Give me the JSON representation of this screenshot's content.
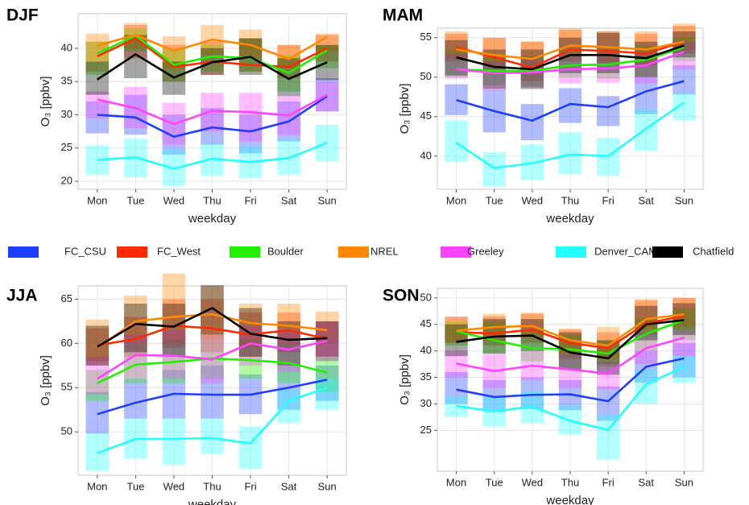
{
  "legend": {
    "series": [
      {
        "name": "FC_CSU",
        "color": "#1f3fff"
      },
      {
        "name": "FC_West",
        "color": "#ff2a00"
      },
      {
        "name": "Boulder",
        "color": "#22ee00"
      },
      {
        "name": "NREL",
        "color": "#ff8800"
      },
      {
        "name": "Greeley",
        "color": "#ff44ff"
      },
      {
        "name": "Denver_CAMP",
        "color": "#22ffff"
      },
      {
        "name": "Chatfield",
        "color": "#000000"
      }
    ]
  },
  "chart_data": [
    {
      "type": "line",
      "title": "DJF",
      "xlabel": "weekday",
      "ylabel": "O₃ [ppbv]",
      "categories": [
        "Mon",
        "Tue",
        "Wed",
        "Thu",
        "Fri",
        "Sat",
        "Sun"
      ],
      "ylim": [
        18.8,
        45.2
      ],
      "yticks": [
        20,
        25,
        30,
        35,
        40
      ],
      "grid": true,
      "series": [
        {
          "values": [
            30,
            29.6,
            26.7,
            28.1,
            27.5,
            29,
            32.8
          ],
          "lower": [
            27.2,
            27,
            24,
            25.5,
            24.2,
            26,
            30.5
          ],
          "upper": [
            32,
            33,
            30,
            31,
            30,
            32,
            35.5
          ]
        },
        {
          "values": [
            38.8,
            41.5,
            37.2,
            38,
            37.5,
            37.2,
            40
          ],
          "lower": [
            36.5,
            38.5,
            35,
            36,
            36.5,
            35.5,
            38
          ],
          "upper": [
            41,
            43.5,
            40.5,
            41,
            41.5,
            40.5,
            42
          ]
        },
        {
          "values": [
            39.2,
            41.9,
            37.5,
            38.8,
            38.5,
            36.3,
            39.7
          ],
          "lower": [
            36,
            39.5,
            35,
            36.5,
            36.5,
            33.5,
            37
          ],
          "upper": [
            41,
            43,
            40,
            40.5,
            41.5,
            39,
            40.5
          ]
        },
        {
          "values": [
            40.4,
            42,
            39.6,
            41.3,
            40.5,
            38.4,
            41.7
          ],
          "lower": [
            38,
            40,
            37,
            39,
            38.5,
            37,
            39.5
          ],
          "upper": [
            42.2,
            43.8,
            41.8,
            43.5,
            42.8,
            40.5,
            42.2
          ]
        },
        {
          "values": [
            32.3,
            31,
            28.6,
            30.6,
            30.4,
            29.9,
            33
          ],
          "lower": [
            29.5,
            28,
            25.5,
            27.5,
            26,
            27,
            30.5
          ],
          "upper": [
            33.5,
            34.2,
            31.8,
            33.3,
            33.3,
            32.8,
            35
          ]
        },
        {
          "values": [
            23.2,
            23.6,
            21.9,
            23.4,
            22.9,
            23.5,
            25.8
          ],
          "lower": [
            21,
            20.6,
            19.3,
            20.8,
            20.5,
            21,
            23
          ],
          "upper": [
            25.4,
            26.4,
            24.8,
            25.8,
            25.2,
            26.3,
            28.5
          ]
        },
        {
          "values": [
            35.3,
            39.1,
            35.6,
            37.9,
            38.7,
            35.4,
            37.9
          ],
          "lower": [
            33,
            35.5,
            33,
            36,
            36,
            32.8,
            35.2
          ],
          "upper": [
            38,
            42,
            38,
            40,
            41.5,
            38.5,
            40.5
          ]
        }
      ]
    },
    {
      "type": "line",
      "title": "MAM",
      "xlabel": "weekday",
      "ylabel": "O₃ [ppbv]",
      "categories": [
        "Mon",
        "Tue",
        "Wed",
        "Thu",
        "Fri",
        "Sat",
        "Sun"
      ],
      "ylim": [
        35.8,
        56.2
      ],
      "yticks": [
        40,
        45,
        50,
        55
      ],
      "grid": true,
      "series": [
        {
          "values": [
            47.1,
            45.7,
            44.5,
            46.6,
            46.2,
            48.2,
            49.5
          ],
          "lower": [
            45.2,
            43,
            42,
            44.2,
            43.8,
            45.3,
            47.8
          ],
          "upper": [
            49.1,
            48.4,
            46.6,
            48.6,
            47.6,
            50,
            51.5
          ]
        },
        {
          "values": [
            53.8,
            52.5,
            51.2,
            53.5,
            53.3,
            53,
            54.5
          ],
          "lower": [
            52,
            50.5,
            49.5,
            52,
            51.5,
            51.5,
            53
          ],
          "upper": [
            55.5,
            55,
            54.5,
            56,
            55.8,
            55.5,
            56.5
          ]
        },
        {
          "values": [
            51,
            50.8,
            50.8,
            51.5,
            51.6,
            52.2,
            53.8
          ],
          "lower": [
            50,
            49,
            48.8,
            50,
            49.8,
            50,
            52
          ],
          "upper": [
            53.5,
            52.5,
            52.7,
            53.5,
            53.5,
            54,
            55
          ]
        },
        {
          "values": [
            53.5,
            52.8,
            52.3,
            54,
            53.8,
            53.5,
            54.5
          ],
          "lower": [
            52.5,
            51.5,
            51,
            52.5,
            52,
            51.8,
            53.5
          ],
          "upper": [
            55.8,
            55,
            54.5,
            56.2,
            55.8,
            55.8,
            56.8
          ]
        },
        {
          "values": [
            51,
            50.5,
            50.6,
            51,
            51.1,
            51.5,
            53.2
          ],
          "lower": [
            49.8,
            48.3,
            48.7,
            49.2,
            49.3,
            49.2,
            51
          ],
          "upper": [
            53,
            52,
            52.2,
            53,
            53,
            53.2,
            54.5
          ]
        },
        {
          "values": [
            41.7,
            38.5,
            39.1,
            40.2,
            40,
            43.5,
            46.8
          ],
          "lower": [
            39.3,
            36.2,
            37,
            37.7,
            37.5,
            40.7,
            44.5
          ],
          "upper": [
            44.5,
            40.5,
            41.5,
            43,
            42.3,
            46,
            48
          ]
        },
        {
          "values": [
            52.5,
            51.3,
            51,
            52.8,
            52.8,
            52.4,
            54
          ],
          "lower": [
            50.2,
            48.5,
            48.5,
            50.5,
            50.5,
            50,
            52.5
          ],
          "upper": [
            54.7,
            53.5,
            53.5,
            55,
            55.6,
            54.5,
            55.8
          ]
        }
      ]
    },
    {
      "type": "line",
      "title": "JJA",
      "xlabel": "weekday",
      "ylabel": "O₃ [ppbv]",
      "categories": [
        "Mon",
        "Tue",
        "Wed",
        "Thu",
        "Fri",
        "Sat",
        "Sun"
      ],
      "ylim": [
        45.1,
        66.5
      ],
      "yticks": [
        50,
        55,
        60,
        65
      ],
      "grid": true,
      "series": [
        {
          "values": [
            52,
            53.3,
            54.3,
            54.2,
            54.2,
            55,
            55.9
          ],
          "lower": [
            49.8,
            51.5,
            51.5,
            51.5,
            52,
            52.5,
            53.5
          ],
          "upper": [
            54.5,
            56,
            57,
            57.5,
            56.5,
            57.5,
            57.5
          ]
        },
        {
          "values": [
            59.8,
            60.5,
            62,
            61.7,
            61,
            61.5,
            60.5
          ],
          "lower": [
            58,
            58.5,
            59.5,
            59,
            58.5,
            59,
            58.5
          ],
          "upper": [
            61.7,
            63,
            65,
            65,
            63.5,
            63.5,
            62.5
          ]
        },
        {
          "values": [
            55.5,
            57.6,
            57.9,
            58.3,
            58.1,
            57.8,
            56.7
          ],
          "lower": [
            53.5,
            55.5,
            55.5,
            56,
            56,
            55.5,
            54.5
          ],
          "upper": [
            57,
            60,
            60.5,
            61,
            60.5,
            60,
            58
          ]
        },
        {
          "values": [
            59.5,
            62.5,
            63,
            63.3,
            62.3,
            62,
            61.5
          ],
          "lower": [
            57.5,
            60,
            60,
            60.5,
            59.5,
            60,
            60
          ],
          "upper": [
            62.7,
            65.4,
            67.9,
            66.5,
            64.5,
            64.5,
            63.6
          ]
        },
        {
          "values": [
            56,
            58.7,
            58.6,
            58.2,
            60,
            59.3,
            60.3
          ],
          "lower": [
            54.2,
            56,
            56,
            55.5,
            57.5,
            56.8,
            58.5
          ],
          "upper": [
            58.5,
            61,
            61.5,
            61,
            62,
            61.5,
            62.5
          ]
        },
        {
          "values": [
            47.6,
            49.2,
            49.2,
            49.3,
            48.7,
            53.5,
            55
          ],
          "lower": [
            45.6,
            47,
            46.3,
            47.5,
            45.8,
            51,
            52.5
          ],
          "upper": [
            49.8,
            51.5,
            51.5,
            51.5,
            50.6,
            54.8,
            56
          ]
        },
        {
          "values": [
            59.6,
            62.2,
            61.9,
            64,
            61.1,
            60.4,
            60.6
          ],
          "lower": [
            57.5,
            59,
            58.5,
            61,
            58.5,
            57.5,
            58
          ],
          "upper": [
            62,
            64.5,
            64.5,
            66.6,
            64,
            62.5,
            62.5
          ]
        }
      ]
    },
    {
      "type": "line",
      "title": "SON",
      "xlabel": "weekday",
      "ylabel": "O₃ [ppbv]",
      "categories": [
        "Mon",
        "Tue",
        "Wed",
        "Thu",
        "Fri",
        "Sat",
        "Sun"
      ],
      "ylim": [
        17.3,
        51.8
      ],
      "yticks": [
        25,
        30,
        35,
        40,
        45,
        50
      ],
      "grid": true,
      "series": [
        {
          "values": [
            32.7,
            31.3,
            31.7,
            31.8,
            30.5,
            37,
            38.6
          ],
          "lower": [
            30,
            28.5,
            29,
            28.8,
            26.8,
            34,
            35
          ],
          "upper": [
            36,
            34.5,
            35,
            34.5,
            33.3,
            40,
            41.5
          ]
        },
        {
          "values": [
            43.5,
            43.3,
            44,
            41.5,
            40.5,
            45.2,
            46.6
          ],
          "lower": [
            41.5,
            41,
            41.5,
            38.5,
            37.5,
            43,
            44
          ],
          "upper": [
            46.5,
            46.5,
            47,
            44,
            43.5,
            49.5,
            50
          ]
        },
        {
          "values": [
            43.7,
            42,
            40.5,
            40.3,
            39.5,
            43.2,
            45.8
          ],
          "lower": [
            41,
            39.5,
            38,
            36.5,
            37,
            40,
            42
          ],
          "upper": [
            45.5,
            45.5,
            44,
            43,
            42,
            46,
            48
          ]
        },
        {
          "values": [
            43.8,
            44.5,
            44.7,
            42,
            41,
            46,
            46.9
          ],
          "lower": [
            41.5,
            42,
            42.5,
            39.5,
            38.5,
            44,
            44.5
          ],
          "upper": [
            46.3,
            47,
            47.2,
            44.2,
            44.5,
            49.8,
            50
          ]
        },
        {
          "values": [
            37.6,
            36.2,
            37.2,
            36.5,
            35.7,
            40.5,
            42.5
          ],
          "lower": [
            35,
            33,
            34.5,
            33,
            32.8,
            37.5,
            39
          ],
          "upper": [
            40,
            39.5,
            40,
            39.5,
            38,
            43.5,
            44
          ]
        },
        {
          "values": [
            29.6,
            28.6,
            29.5,
            26.8,
            25.1,
            33.7,
            37
          ],
          "lower": [
            27.5,
            25.8,
            26.3,
            24.2,
            19.5,
            30,
            34
          ],
          "upper": [
            31.5,
            31.5,
            32.5,
            29.8,
            28,
            36.5,
            39
          ]
        },
        {
          "values": [
            41.7,
            42.7,
            42.9,
            39.7,
            38.6,
            45,
            45.8
          ],
          "lower": [
            39,
            39.5,
            40,
            36.5,
            35.5,
            42,
            43
          ],
          "upper": [
            45,
            46,
            46,
            43.5,
            42,
            48.5,
            49
          ]
        }
      ]
    }
  ]
}
